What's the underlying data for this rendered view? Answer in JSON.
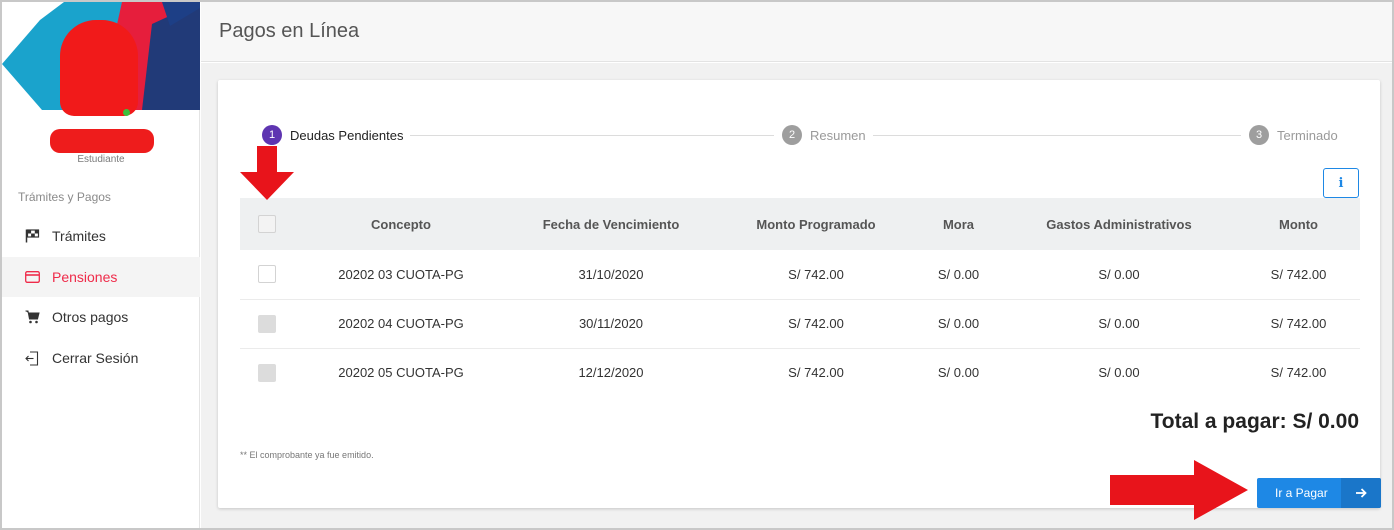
{
  "sidebar": {
    "role": "Estudiante",
    "section_label": "Trámites y Pagos",
    "items": [
      {
        "label": "Trámites",
        "icon": "flag-icon"
      },
      {
        "label": "Pensiones",
        "icon": "credit-card-icon",
        "active": true
      },
      {
        "label": "Otros pagos",
        "icon": "cart-icon"
      },
      {
        "label": "Cerrar Sesión",
        "icon": "logout-icon"
      }
    ]
  },
  "header": {
    "title": "Pagos en Línea"
  },
  "stepper": {
    "steps": [
      {
        "num": "1",
        "label": "Deudas Pendientes"
      },
      {
        "num": "2",
        "label": "Resumen"
      },
      {
        "num": "3",
        "label": "Terminado"
      }
    ]
  },
  "info_label": "i",
  "table": {
    "headers": [
      "Concepto",
      "Fecha de Vencimiento",
      "Monto Programado",
      "Mora",
      "Gastos Administrativos",
      "Monto"
    ],
    "rows": [
      {
        "concepto": "20202 03 CUOTA-PG",
        "fecha": "31/10/2020",
        "programado": "S/ 742.00",
        "mora": "S/ 0.00",
        "gastos": "S/ 0.00",
        "monto": "S/ 742.00"
      },
      {
        "concepto": "20202 04 CUOTA-PG",
        "fecha": "30/11/2020",
        "programado": "S/ 742.00",
        "mora": "S/ 0.00",
        "gastos": "S/ 0.00",
        "monto": "S/ 742.00"
      },
      {
        "concepto": "20202 05 CUOTA-PG",
        "fecha": "12/12/2020",
        "programado": "S/ 742.00",
        "mora": "S/ 0.00",
        "gastos": "S/ 0.00",
        "monto": "S/ 742.00"
      }
    ]
  },
  "total": "Total a pagar: S/ 0.00",
  "footnote": "** El comprobante ya fue emitido.",
  "pay_button": {
    "label": "Ir a Pagar"
  },
  "colors": {
    "accent": "#1e88e5",
    "active_nav": "#ef2b4a",
    "step_active": "#5e35b1",
    "annotation_arrow": "#e8141b"
  }
}
